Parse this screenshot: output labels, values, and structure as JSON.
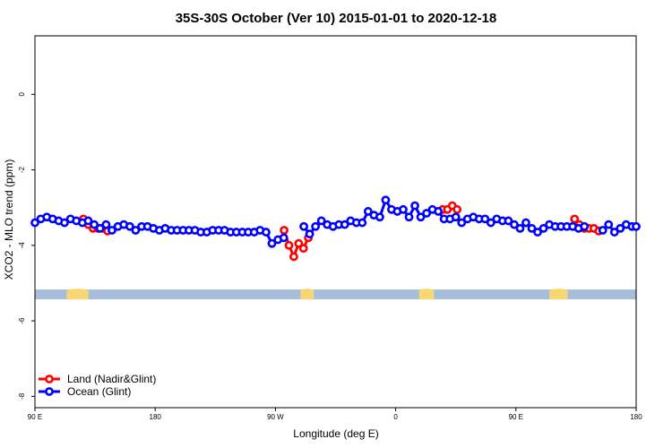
{
  "chart_data": {
    "type": "line",
    "title": "35S-30S October (Ver 10)   2015-01-01 to 2020-12-18",
    "xlabel": "Longitude (deg E)",
    "ylabel": "XCO2 - MLO trend (ppm)",
    "xlim": [
      90,
      450
    ],
    "ylim": [
      -8.3,
      1.55
    ],
    "x_ticks": [
      {
        "value": 90,
        "label": "90 E"
      },
      {
        "value": 162,
        "label": "180"
      },
      {
        "value": 234,
        "label": "90 W"
      },
      {
        "value": 306,
        "label": "0"
      },
      {
        "value": 378,
        "label": "90 E"
      },
      {
        "value": 450,
        "label": "180"
      }
    ],
    "y_ticks": [
      {
        "value": 0,
        "label": "0"
      },
      {
        "value": -2,
        "label": "-2"
      },
      {
        "value": -4,
        "label": "-4"
      },
      {
        "value": -6,
        "label": "-6"
      },
      {
        "value": -8,
        "label": "-8"
      }
    ],
    "grid": false,
    "legend_position": "bottom-left",
    "series": [
      {
        "name": "Land (Nadir&Glint)",
        "color": "#ff0000",
        "x": [
          119.0,
          121.9,
          124.8,
          127.7,
          130.6,
          133.5,
          239.2,
          242.1,
          245.0,
          247.9,
          250.8,
          253.7,
          334.1,
          337.0,
          339.9,
          342.8,
          413.1,
          416.0,
          418.9,
          421.8,
          424.7,
          427.6
        ],
        "y": [
          -3.3,
          -3.45,
          -3.55,
          -3.55,
          -3.55,
          -3.62,
          -3.6,
          -4.0,
          -4.3,
          -3.95,
          -4.08,
          -3.8,
          -3.05,
          -3.05,
          -2.95,
          -3.05,
          -3.3,
          -3.45,
          -3.55,
          -3.55,
          -3.55,
          -3.62
        ]
      },
      {
        "name": "Ocean (Glint)",
        "color": "#0000ff",
        "x": [
          90.0,
          93.5,
          97.1,
          100.6,
          104.2,
          107.7,
          111.3,
          114.8,
          118.4,
          121.9,
          125.5,
          129.0,
          132.6,
          136.1,
          139.7,
          143.2,
          146.8,
          150.3,
          153.9,
          157.4,
          160.9,
          164.5,
          168.0,
          171.6,
          175.1,
          178.7,
          182.2,
          185.8,
          189.3,
          192.9,
          196.4,
          200.0,
          203.5,
          207.1,
          210.6,
          214.2,
          217.7,
          221.3,
          224.8,
          228.4,
          231.9,
          235.5,
          239.0,
          251.0,
          254.5,
          258.0,
          261.5,
          265.0,
          268.5,
          272.0,
          275.5,
          279.0,
          282.5,
          286.0,
          289.5,
          293.0,
          296.5,
          300.0,
          303.5,
          307.0,
          310.5,
          314.0,
          317.5,
          321.0,
          324.5,
          328.0,
          331.5,
          335.0,
          338.5,
          342.0,
          345.5,
          349.0,
          352.5,
          356.0,
          359.5,
          363.0,
          366.5,
          370.0,
          373.5,
          377.0,
          380.5,
          384.0,
          387.5,
          391.0,
          394.5,
          398.0,
          401.5,
          405.0,
          408.5,
          412.0,
          415.5,
          419.0,
          430.0,
          433.5,
          437.0,
          440.5,
          444.0,
          447.5,
          450.0
        ],
        "y": [
          -3.4,
          -3.3,
          -3.25,
          -3.3,
          -3.35,
          -3.4,
          -3.3,
          -3.35,
          -3.4,
          -3.35,
          -3.45,
          -3.55,
          -3.45,
          -3.6,
          -3.5,
          -3.45,
          -3.5,
          -3.6,
          -3.5,
          -3.5,
          -3.55,
          -3.6,
          -3.55,
          -3.6,
          -3.6,
          -3.6,
          -3.6,
          -3.6,
          -3.65,
          -3.65,
          -3.6,
          -3.6,
          -3.6,
          -3.65,
          -3.65,
          -3.65,
          -3.65,
          -3.65,
          -3.6,
          -3.65,
          -3.95,
          -3.85,
          -3.8,
          -3.5,
          -3.7,
          -3.5,
          -3.35,
          -3.45,
          -3.5,
          -3.45,
          -3.45,
          -3.35,
          -3.4,
          -3.4,
          -3.1,
          -3.2,
          -3.25,
          -2.8,
          -3.05,
          -3.1,
          -3.05,
          -3.25,
          -2.95,
          -3.25,
          -3.15,
          -3.05,
          -3.1,
          -3.3,
          -3.3,
          -3.25,
          -3.4,
          -3.3,
          -3.25,
          -3.3,
          -3.3,
          -3.4,
          -3.3,
          -3.35,
          -3.35,
          -3.45,
          -3.55,
          -3.4,
          -3.55,
          -3.65,
          -3.55,
          -3.45,
          -3.5,
          -3.5,
          -3.5,
          -3.5,
          -3.55,
          -3.5,
          -3.6,
          -3.45,
          -3.65,
          -3.55,
          -3.45,
          -3.5,
          -3.5
        ]
      }
    ],
    "landmask": {
      "y": -5.3,
      "ocean_color": "#a6bddb",
      "land_color": "#f7d774",
      "land_segments": [
        [
          109,
          122
        ],
        [
          249,
          257
        ],
        [
          320,
          329
        ],
        [
          398,
          409
        ]
      ]
    }
  }
}
